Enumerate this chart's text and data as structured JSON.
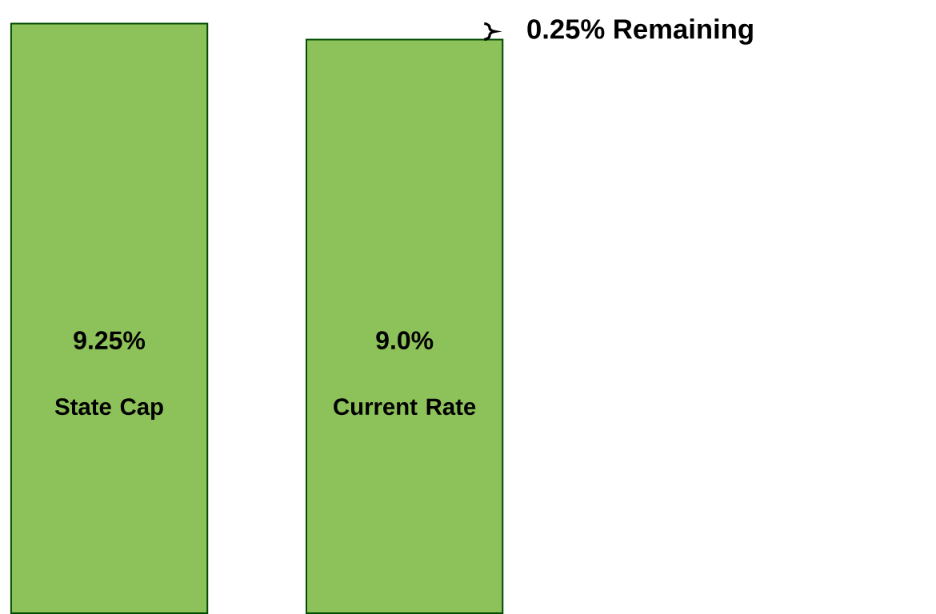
{
  "chart_data": {
    "type": "bar",
    "categories": [
      "State Cap",
      "Current Rate"
    ],
    "values": [
      9.25,
      9.0
    ],
    "value_labels": [
      "9.25%",
      "9.0%"
    ],
    "color": "#8dc15a",
    "annotations": [
      "0.25% Remaining"
    ]
  }
}
